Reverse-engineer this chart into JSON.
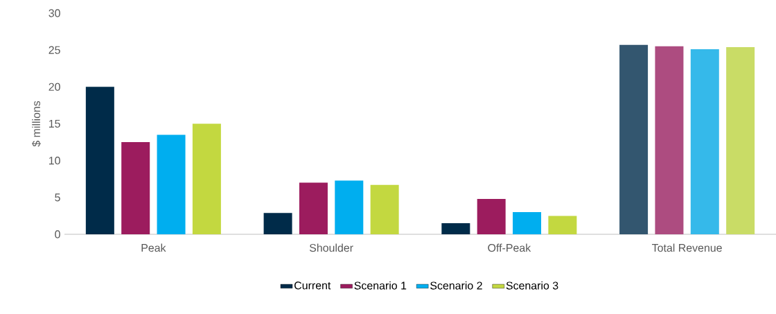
{
  "chart_data": {
    "type": "bar",
    "ylabel": "$ millions",
    "categories": [
      "Peak",
      "Shoulder",
      "Off-Peak",
      "Total Revenue"
    ],
    "ylim": [
      0,
      30
    ],
    "yticks": [
      0,
      5,
      10,
      15,
      20,
      25,
      30
    ],
    "legend": "bottom",
    "grid": false,
    "series": [
      {
        "name": "Current",
        "color": "#002b49",
        "colors": [
          "#002b49",
          "#002b49",
          "#002b49",
          "#33566f"
        ],
        "values": [
          20.0,
          2.9,
          1.5,
          25.7
        ]
      },
      {
        "name": "Scenario 1",
        "color": "#9c1c5e",
        "colors": [
          "#9c1c5e",
          "#9c1c5e",
          "#9c1c5e",
          "#ad4c80"
        ],
        "values": [
          12.5,
          7.0,
          4.8,
          25.5
        ]
      },
      {
        "name": "Scenario 2",
        "color": "#00aeef",
        "colors": [
          "#00aeef",
          "#00aeef",
          "#00aeef",
          "#35b9ea"
        ],
        "values": [
          13.5,
          7.3,
          3.0,
          25.1
        ]
      },
      {
        "name": "Scenario 3",
        "color": "#c3d840",
        "colors": [
          "#c3d840",
          "#c3d840",
          "#c3d840",
          "#c9dc66"
        ],
        "values": [
          15.0,
          6.7,
          2.5,
          25.4
        ]
      }
    ]
  }
}
